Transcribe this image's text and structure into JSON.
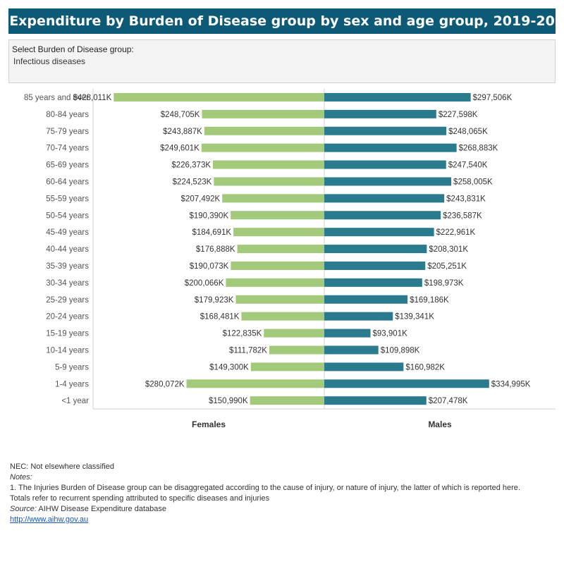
{
  "header": {
    "title": "Expenditure by Burden of Disease group by sex and age group, 2019-20"
  },
  "filter": {
    "label": "Select Burden of Disease group:",
    "value": "Infectious diseases"
  },
  "colors": {
    "females": "#a3c97a",
    "males": "#2b7b8f",
    "title_bg": "#0c5a75"
  },
  "chart_data": {
    "type": "bar",
    "orientation": "horizontal-diverging",
    "categories": [
      "85 years and over",
      "80-84 years",
      "75-79 years",
      "70-74 years",
      "65-69 years",
      "60-64 years",
      "55-59 years",
      "50-54 years",
      "45-49 years",
      "40-44 years",
      "35-39 years",
      "30-34 years",
      "25-29 years",
      "20-24 years",
      "15-19 years",
      "10-14 years",
      "5-9 years",
      "1-4 years",
      "<1 year"
    ],
    "series": [
      {
        "name": "Females",
        "values": [
          428011,
          248705,
          243887,
          249601,
          226373,
          224523,
          207492,
          190390,
          184691,
          176888,
          190073,
          200066,
          179923,
          168481,
          122835,
          111782,
          149300,
          280072,
          150990
        ],
        "labels": [
          "$428,011K",
          "$248,705K",
          "$243,887K",
          "$249,601K",
          "$226,373K",
          "$224,523K",
          "$207,492K",
          "$190,390K",
          "$184,691K",
          "$176,888K",
          "$190,073K",
          "$200,066K",
          "$179,923K",
          "$168,481K",
          "$122,835K",
          "$111,782K",
          "$149,300K",
          "$280,072K",
          "$150,990K"
        ]
      },
      {
        "name": "Males",
        "values": [
          297506,
          227598,
          248065,
          268883,
          247540,
          258005,
          243831,
          236587,
          222961,
          208301,
          205251,
          198973,
          169186,
          139341,
          93901,
          109898,
          160982,
          334995,
          207478
        ],
        "labels": [
          "$297,506K",
          "$227,598K",
          "$248,065K",
          "$268,883K",
          "$247,540K",
          "$258,005K",
          "$243,831K",
          "$236,587K",
          "$222,961K",
          "$208,301K",
          "$205,251K",
          "$198,973K",
          "$169,186K",
          "$139,341K",
          "$93,901K",
          "$109,898K",
          "$160,982K",
          "$334,995K",
          "$207,478K"
        ]
      }
    ],
    "units": "$ thousands",
    "grid": false
  },
  "notes": {
    "nec": "NEC: Not elsewhere classified",
    "notes_label": "Notes:",
    "note1": "1. The Injuries Burden of Disease group can be disaggregated according to the cause of injury, or nature of injury, the latter of which is reported here.",
    "note2": "Totals refer to recurrent spending attributed to specific diseases and injuries",
    "source_label": "Source:",
    "source_text": " AIHW Disease Expenditure database",
    "link": "http://www.aihw.gov.au"
  }
}
